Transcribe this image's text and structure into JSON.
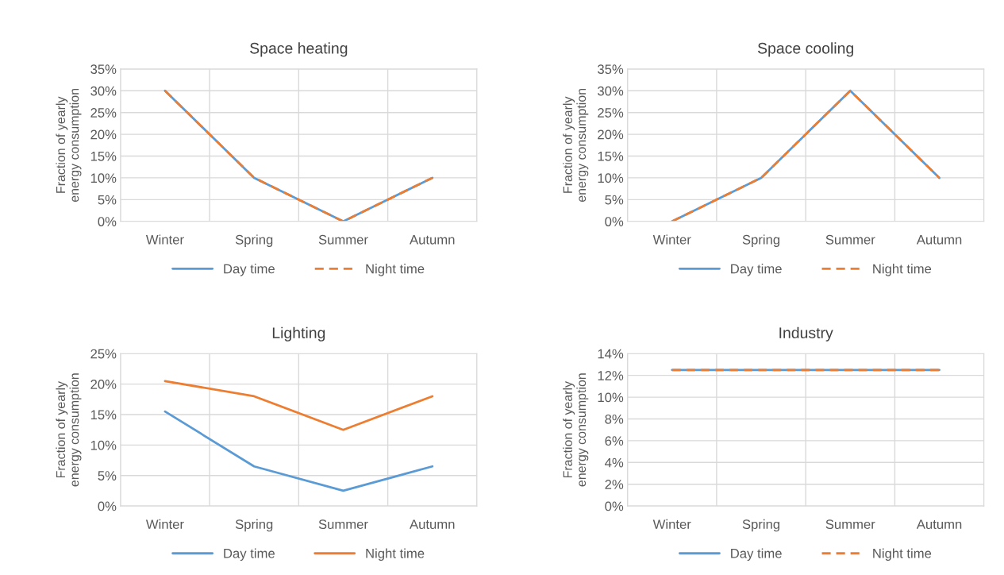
{
  "chart_data": [
    {
      "type": "line",
      "title": "Space heating",
      "ylabel": "Fraction of yearly energy consumption",
      "categories": [
        "Winter",
        "Spring",
        "Summer",
        "Autumn"
      ],
      "series": [
        {
          "name": "Day time",
          "color": "#5b9bd5",
          "values": [
            30,
            10,
            0,
            10
          ],
          "line_style": "solid"
        },
        {
          "name": "Night time",
          "color": "#ed7d31",
          "values": [
            30,
            10,
            0,
            10
          ],
          "line_style": "dashed"
        }
      ],
      "ylim": [
        0,
        35
      ],
      "yticks": [
        {
          "value": 0,
          "label": "0%"
        },
        {
          "value": 5,
          "label": "5%"
        },
        {
          "value": 10,
          "label": "10%"
        },
        {
          "value": 15,
          "label": "15%"
        },
        {
          "value": 20,
          "label": "20%"
        },
        {
          "value": 25,
          "label": "25%"
        },
        {
          "value": 30,
          "label": "30%"
        },
        {
          "value": 35,
          "label": "35%"
        }
      ],
      "grid": true,
      "legend": "bottom"
    },
    {
      "type": "line",
      "title": "Space cooling",
      "ylabel": "Fraction of yearly energy consumption",
      "categories": [
        "Winter",
        "Spring",
        "Summer",
        "Autumn"
      ],
      "series": [
        {
          "name": "Day time",
          "color": "#5b9bd5",
          "values": [
            0,
            10,
            30,
            10
          ],
          "line_style": "solid"
        },
        {
          "name": "Night time",
          "color": "#ed7d31",
          "values": [
            0,
            10,
            30,
            10
          ],
          "line_style": "dashed"
        }
      ],
      "ylim": [
        0,
        35
      ],
      "yticks": [
        {
          "value": 0,
          "label": "0%"
        },
        {
          "value": 5,
          "label": "5%"
        },
        {
          "value": 10,
          "label": "10%"
        },
        {
          "value": 15,
          "label": "15%"
        },
        {
          "value": 20,
          "label": "20%"
        },
        {
          "value": 25,
          "label": "25%"
        },
        {
          "value": 30,
          "label": "30%"
        },
        {
          "value": 35,
          "label": "35%"
        }
      ],
      "grid": true,
      "legend": "bottom"
    },
    {
      "type": "line",
      "title": "Lighting",
      "ylabel": "Fraction of yearly energy consumption",
      "categories": [
        "Winter",
        "Spring",
        "Summer",
        "Autumn"
      ],
      "series": [
        {
          "name": "Day time",
          "color": "#5b9bd5",
          "values": [
            15.5,
            6.5,
            2.5,
            6.5
          ],
          "line_style": "solid"
        },
        {
          "name": "Night time",
          "color": "#ed7d31",
          "values": [
            20.5,
            18,
            12.5,
            18
          ],
          "line_style": "solid"
        }
      ],
      "ylim": [
        0,
        25
      ],
      "yticks": [
        {
          "value": 0,
          "label": "0%"
        },
        {
          "value": 5,
          "label": "5%"
        },
        {
          "value": 10,
          "label": "10%"
        },
        {
          "value": 15,
          "label": "15%"
        },
        {
          "value": 20,
          "label": "20%"
        },
        {
          "value": 25,
          "label": "25%"
        }
      ],
      "grid": true,
      "legend": "bottom"
    },
    {
      "type": "line",
      "title": "Industry",
      "ylabel": "Fraction of yearly energy consumption",
      "categories": [
        "Winter",
        "Spring",
        "Summer",
        "Autumn"
      ],
      "series": [
        {
          "name": "Day time",
          "color": "#5b9bd5",
          "values": [
            12.5,
            12.5,
            12.5,
            12.5
          ],
          "line_style": "solid"
        },
        {
          "name": "Night time",
          "color": "#ed7d31",
          "values": [
            12.5,
            12.5,
            12.5,
            12.5
          ],
          "line_style": "dashed"
        }
      ],
      "ylim": [
        0,
        14
      ],
      "yticks": [
        {
          "value": 0,
          "label": "0%"
        },
        {
          "value": 2,
          "label": "2%"
        },
        {
          "value": 4,
          "label": "4%"
        },
        {
          "value": 6,
          "label": "6%"
        },
        {
          "value": 8,
          "label": "8%"
        },
        {
          "value": 10,
          "label": "10%"
        },
        {
          "value": 12,
          "label": "12%"
        },
        {
          "value": 14,
          "label": "14%"
        }
      ],
      "grid": true,
      "legend": "bottom"
    }
  ]
}
